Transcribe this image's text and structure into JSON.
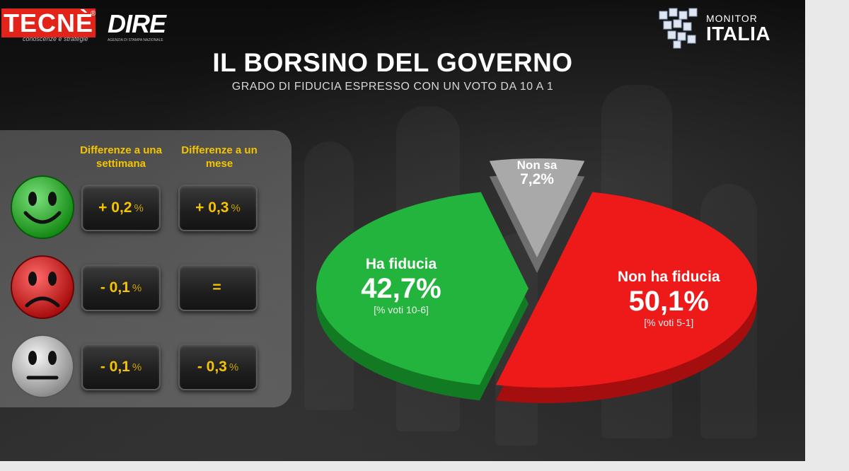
{
  "header": {
    "tecne_logo": "TECNÈ",
    "tecne_reg": "®",
    "tecne_tagline": "conoscenze e strategie",
    "dire_logo": "DIRE",
    "dire_tagline": "AGENZIA DI STAMPA NAZIONALE",
    "monitor_small": "MONITOR",
    "monitor_big": "ITALIA"
  },
  "title": "IL BORSINO DEL GOVERNO",
  "subtitle": "GRADO DI FIDUCIA ESPRESSO CON UN VOTO DA 10  A 1",
  "panel": {
    "col1_header": "Differenze a una settimana",
    "col2_header": "Differenze a un mese",
    "rows": [
      {
        "face": "happy-face-icon",
        "color": "#2eb82e",
        "week": "+ 0,2",
        "week_unit": "%",
        "month": "+ 0,3",
        "month_unit": "%"
      },
      {
        "face": "sad-face-icon",
        "color": "#e01515",
        "week": "- 0,1",
        "week_unit": "%",
        "month": "=",
        "month_unit": ""
      },
      {
        "face": "neutral-face-icon",
        "color": "#c8c8c8",
        "week": "- 0,1",
        "week_unit": "%",
        "month": "- 0,3",
        "month_unit": "%"
      }
    ]
  },
  "chart_data": {
    "type": "pie",
    "title": "IL BORSINO DEL GOVERNO",
    "subtitle": "GRADO DI FIDUCIA ESPRESSO CON UN VOTO DA 10  A 1",
    "slices": [
      {
        "label": "Ha fiducia",
        "value": 42.7,
        "display": "42,7%",
        "note": "[% voti 10-6]",
        "color": "#22b43c"
      },
      {
        "label": "Non sa",
        "value": 7.2,
        "display": "7,2%",
        "note": "",
        "color": "#a9a9a9"
      },
      {
        "label": "Non ha fiducia",
        "value": 50.1,
        "display": "50,1%",
        "note": "[% voti 5-1]",
        "color": "#ee1a1a"
      }
    ]
  }
}
